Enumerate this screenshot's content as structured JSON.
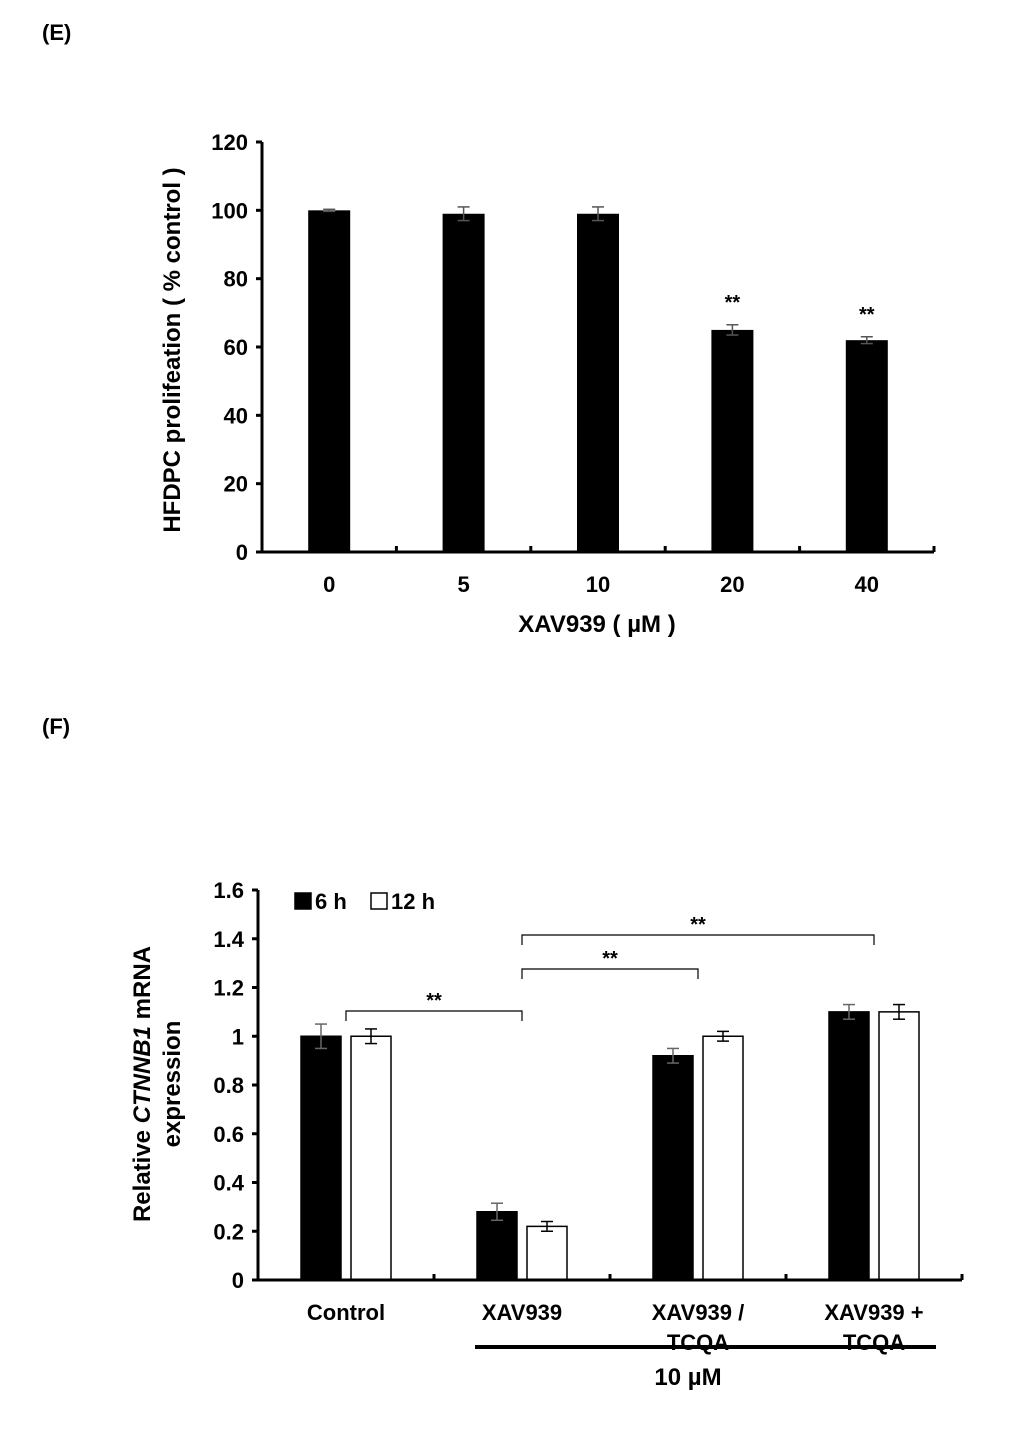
{
  "chart_data": [
    {
      "panel": "(E)",
      "type": "bar",
      "xlabel": "XAV939 ( µM )",
      "ylabel": "HFDPC prolifeation ( % control )",
      "ylim": [
        0,
        120
      ],
      "yticks": [
        "0",
        "20",
        "40",
        "60",
        "80",
        "100",
        "120"
      ],
      "categories": [
        "0",
        "5",
        "10",
        "20",
        "40"
      ],
      "values": [
        100,
        99,
        99,
        65,
        62
      ],
      "errors": [
        0.3,
        2,
        2,
        1.5,
        1
      ],
      "significance": [
        "",
        "",
        "",
        "**",
        "**"
      ],
      "bar_color": "#000000",
      "grid": false
    },
    {
      "panel": "(F)",
      "type": "bar",
      "ylabel_line1_prefix": "Relative ",
      "ylabel_line1_gene": "CTNNB1",
      "ylabel_line1_suffix": " mRNA",
      "ylabel_line2": "expression",
      "ylim": [
        0,
        1.6
      ],
      "yticks": [
        "0",
        "0.2",
        "0.4",
        "0.6",
        "0.8",
        "1",
        "1.2",
        "1.4",
        "1.6"
      ],
      "categories": [
        [
          "Control"
        ],
        [
          "XAV939"
        ],
        [
          "XAV939 /",
          "TCQA"
        ],
        [
          "XAV939 +",
          "TCQA"
        ]
      ],
      "series": [
        {
          "name": "6 h",
          "color": "#000000",
          "values": [
            1.0,
            0.28,
            0.92,
            1.1
          ],
          "errors": [
            0.05,
            0.035,
            0.03,
            0.03
          ]
        },
        {
          "name": "12 h",
          "color": "#ffffff",
          "values": [
            1.0,
            0.22,
            1.0,
            1.1
          ],
          "errors": [
            0.03,
            0.02,
            0.02,
            0.03
          ]
        }
      ],
      "legend_position": "top-left",
      "brackets": [
        {
          "from": 0,
          "to": 1,
          "label": "**"
        },
        {
          "from": 1,
          "to": 2,
          "label": "**"
        },
        {
          "from": 1,
          "to": 3,
          "label": "**"
        }
      ],
      "concentration_label": "10 µM",
      "grid": false
    }
  ]
}
